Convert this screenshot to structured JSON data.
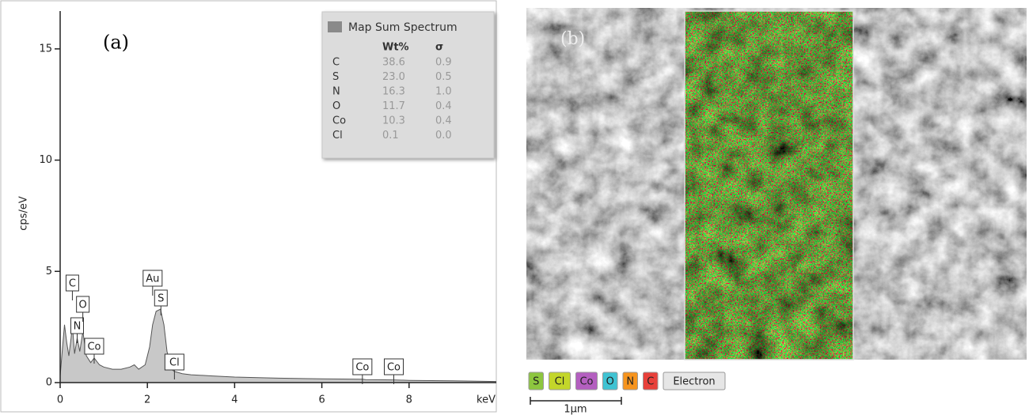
{
  "chart_data": {
    "type": "area",
    "panel_label": "(a)",
    "xlabel": "keV",
    "ylabel": "cps/eV",
    "x": [
      0,
      0.05,
      0.1,
      0.15,
      0.2,
      0.25,
      0.28,
      0.33,
      0.39,
      0.45,
      0.52,
      0.6,
      0.7,
      0.78,
      0.9,
      1.0,
      1.2,
      1.4,
      1.6,
      1.7,
      1.8,
      1.95,
      2.05,
      2.12,
      2.2,
      2.3,
      2.38,
      2.45,
      2.55,
      2.62,
      2.8,
      3,
      3.5,
      4,
      5,
      6,
      6.93,
      7,
      7.65,
      8,
      9,
      10
    ],
    "values": [
      0.3,
      1.5,
      2.6,
      1.8,
      1.2,
      2.0,
      2.6,
      1.3,
      2.0,
      1.4,
      2.3,
      1.2,
      0.9,
      1.1,
      0.8,
      0.7,
      0.6,
      0.6,
      0.7,
      0.8,
      0.6,
      0.8,
      1.6,
      2.6,
      3.2,
      3.3,
      2.6,
      1.4,
      0.6,
      0.5,
      0.4,
      0.35,
      0.3,
      0.25,
      0.2,
      0.17,
      0.15,
      0.13,
      0.12,
      0.1,
      0.08,
      0.05
    ],
    "color": "#c8c8c8",
    "line_color": "#555555",
    "xlim": [
      0,
      10
    ],
    "ylim": [
      0,
      16.7
    ],
    "xticks": [
      0,
      2,
      4,
      6,
      8
    ],
    "yticks": [
      0,
      5,
      10,
      15
    ],
    "peaks": [
      {
        "label": "C",
        "x": 0.28
      },
      {
        "label": "N",
        "x": 0.39
      },
      {
        "label": "O",
        "x": 0.52
      },
      {
        "label": "Co",
        "x": 0.78
      },
      {
        "label": "Au",
        "x": 2.12
      },
      {
        "label": "S",
        "x": 2.31
      },
      {
        "label": "Cl",
        "x": 2.62
      },
      {
        "label": "Co",
        "x": 6.93
      },
      {
        "label": "Co",
        "x": 7.65
      }
    ],
    "legend": {
      "title": "Map Sum Spectrum",
      "columns": [
        "Wt%",
        "σ"
      ],
      "rows": [
        [
          "C",
          "38.6",
          "0.9"
        ],
        [
          "S",
          "23.0",
          "0.5"
        ],
        [
          "N",
          "16.3",
          "1.0"
        ],
        [
          "O",
          "11.7",
          "0.4"
        ],
        [
          "Co",
          "10.3",
          "0.4"
        ],
        [
          "Cl",
          "0.1",
          "0.0"
        ]
      ]
    }
  },
  "image_panel": {
    "label": "(b)",
    "scale_bar": "1µm",
    "keys": [
      {
        "label": "S",
        "color": "#8dc63f"
      },
      {
        "label": "Cl",
        "color": "#c3d62a"
      },
      {
        "label": "Co",
        "color": "#b45fc0"
      },
      {
        "label": "O",
        "color": "#3fc3d3"
      },
      {
        "label": "N",
        "color": "#f7941d"
      },
      {
        "label": "C",
        "color": "#e8403a"
      },
      {
        "label": "Electron",
        "color": "#e6e6e6"
      }
    ]
  }
}
